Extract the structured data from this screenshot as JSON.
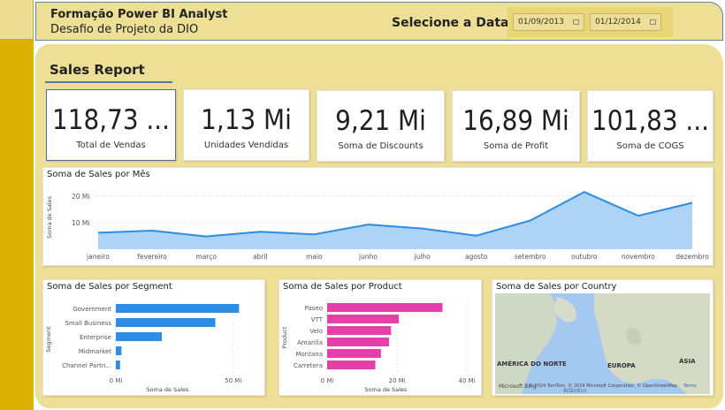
{
  "header": {
    "title": "Formação Power BI Analyst",
    "subtitle": "Desafio de Projeto da DIO",
    "date_label": "Selecione a Data",
    "start_date": "01/09/2013",
    "end_date": "01/12/2014"
  },
  "report": {
    "title": "Sales Report"
  },
  "kpis": [
    {
      "value": "118,73 ...",
      "label": "Total de Vendas"
    },
    {
      "value": "1,13 Mi",
      "label": "Unidades Vendidas"
    },
    {
      "value": "9,21 Mi",
      "label": "Soma de Discounts"
    },
    {
      "value": "16,89 Mi",
      "label": "Soma de Profit"
    },
    {
      "value": "101,83 ...",
      "label": "Soma de COGS"
    }
  ],
  "colors": {
    "accent": "#2b8de6",
    "product": "#e43fab",
    "header_bg": "#eedf97",
    "sidebar": "#dcb100"
  },
  "chart_data": [
    {
      "type": "area",
      "title": "Soma de Sales por Mês",
      "ylabel": "Soma de Sales",
      "categories": [
        "janeiro",
        "fevereiro",
        "março",
        "abril",
        "maio",
        "junho",
        "julho",
        "agosto",
        "setembro",
        "outubro",
        "novembro",
        "dezembro"
      ],
      "values": [
        6.2,
        7.0,
        4.8,
        6.6,
        5.6,
        9.3,
        7.8,
        5.1,
        10.8,
        21.6,
        12.6,
        17.5
      ],
      "yticks": [
        "10 Mi",
        "20 Mi"
      ],
      "ytick_values": [
        10,
        20
      ],
      "ylim": [
        0,
        24
      ],
      "color": "#2b8de6"
    },
    {
      "type": "bar",
      "title": "Soma de Sales por Segment",
      "ylabel": "Segment",
      "xlabel": "Soma de Sales",
      "categories": [
        "Government",
        "Small Business",
        "Enterprise",
        "Midmarket",
        "Channel Partn..."
      ],
      "values": [
        52.5,
        42.4,
        19.6,
        2.4,
        1.8
      ],
      "xticks": [
        "0 Mi",
        "50 Mi"
      ],
      "xtick_values": [
        0,
        50
      ],
      "xlim": [
        0,
        55
      ],
      "color": "#2b8de6"
    },
    {
      "type": "bar",
      "title": "Soma de Sales por Product",
      "ylabel": "Product",
      "xlabel": "Soma de Sales",
      "categories": [
        "Paseo",
        "VTT",
        "Velo",
        "Amarilla",
        "Montana",
        "Carretera"
      ],
      "values": [
        33.0,
        20.5,
        18.3,
        17.7,
        15.4,
        13.8
      ],
      "xticks": [
        "0 Mi",
        "20 Mi",
        "40 Mi"
      ],
      "xtick_values": [
        0,
        20,
        40
      ],
      "xlim": [
        0,
        42
      ],
      "color": "#e43fab"
    }
  ],
  "map": {
    "title": "Soma de Sales por Country",
    "labels": [
      "AMÉRICA DO NORTE",
      "EUROPA",
      "ÁSIA",
      "Atlântico"
    ],
    "attribution": "© 2024 TomTom, © 2024 Microsoft Corporation, © OpenStreetMap",
    "terms": "Terms",
    "brand": "Microsoft Bing"
  }
}
